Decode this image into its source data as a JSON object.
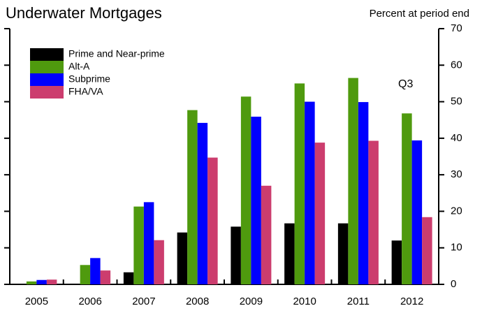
{
  "chart_data": {
    "type": "bar",
    "title": "Underwater Mortgages",
    "subtitle": "Percent at period end",
    "annotation": "Q3",
    "categories": [
      "2005",
      "2006",
      "2007",
      "2008",
      "2009",
      "2010",
      "2011",
      "2012"
    ],
    "series": [
      {
        "name": "Prime and Near-prime",
        "color": "#000000",
        "values": [
          0,
          0.2,
          3.3,
          14.2,
          15.8,
          16.7,
          16.7,
          12
        ]
      },
      {
        "name": "Alt-A",
        "color": "#4f9a0e",
        "values": [
          0.8,
          5.3,
          21.3,
          47.7,
          51.4,
          55,
          56.5,
          46.8
        ]
      },
      {
        "name": "Subprime",
        "color": "#0000ff",
        "values": [
          1.2,
          7.2,
          22.5,
          44.2,
          45.9,
          50,
          49.9,
          39.4
        ]
      },
      {
        "name": "FHA/VA",
        "color": "#cc3d6e",
        "values": [
          1.3,
          3.8,
          12.1,
          34.7,
          27,
          38.8,
          39.3,
          18.4
        ]
      }
    ],
    "ylim": [
      0,
      70
    ],
    "yticks": [
      0,
      10,
      20,
      30,
      40,
      50,
      60,
      70
    ],
    "legend": "upper left"
  }
}
